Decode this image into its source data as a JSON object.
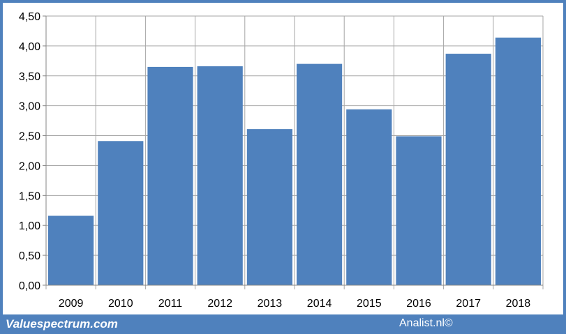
{
  "chart_data": {
    "type": "bar",
    "categories": [
      "2009",
      "2010",
      "2011",
      "2012",
      "2013",
      "2014",
      "2015",
      "2016",
      "2017",
      "2018"
    ],
    "values": [
      1.16,
      2.41,
      3.65,
      3.66,
      2.61,
      3.7,
      2.94,
      2.49,
      3.87,
      4.14
    ],
    "ylim": [
      0,
      4.5
    ],
    "yticks": [
      "0,00",
      "0,50",
      "1,00",
      "1,50",
      "2,00",
      "2,50",
      "3,00",
      "3,50",
      "4,00",
      "4,50"
    ],
    "grid": true,
    "bar_color": "#4f81bd"
  },
  "footer": {
    "left": "Valuespectrum.com",
    "right": "Analist.nl©",
    "bar_color": "#4f81bd"
  }
}
